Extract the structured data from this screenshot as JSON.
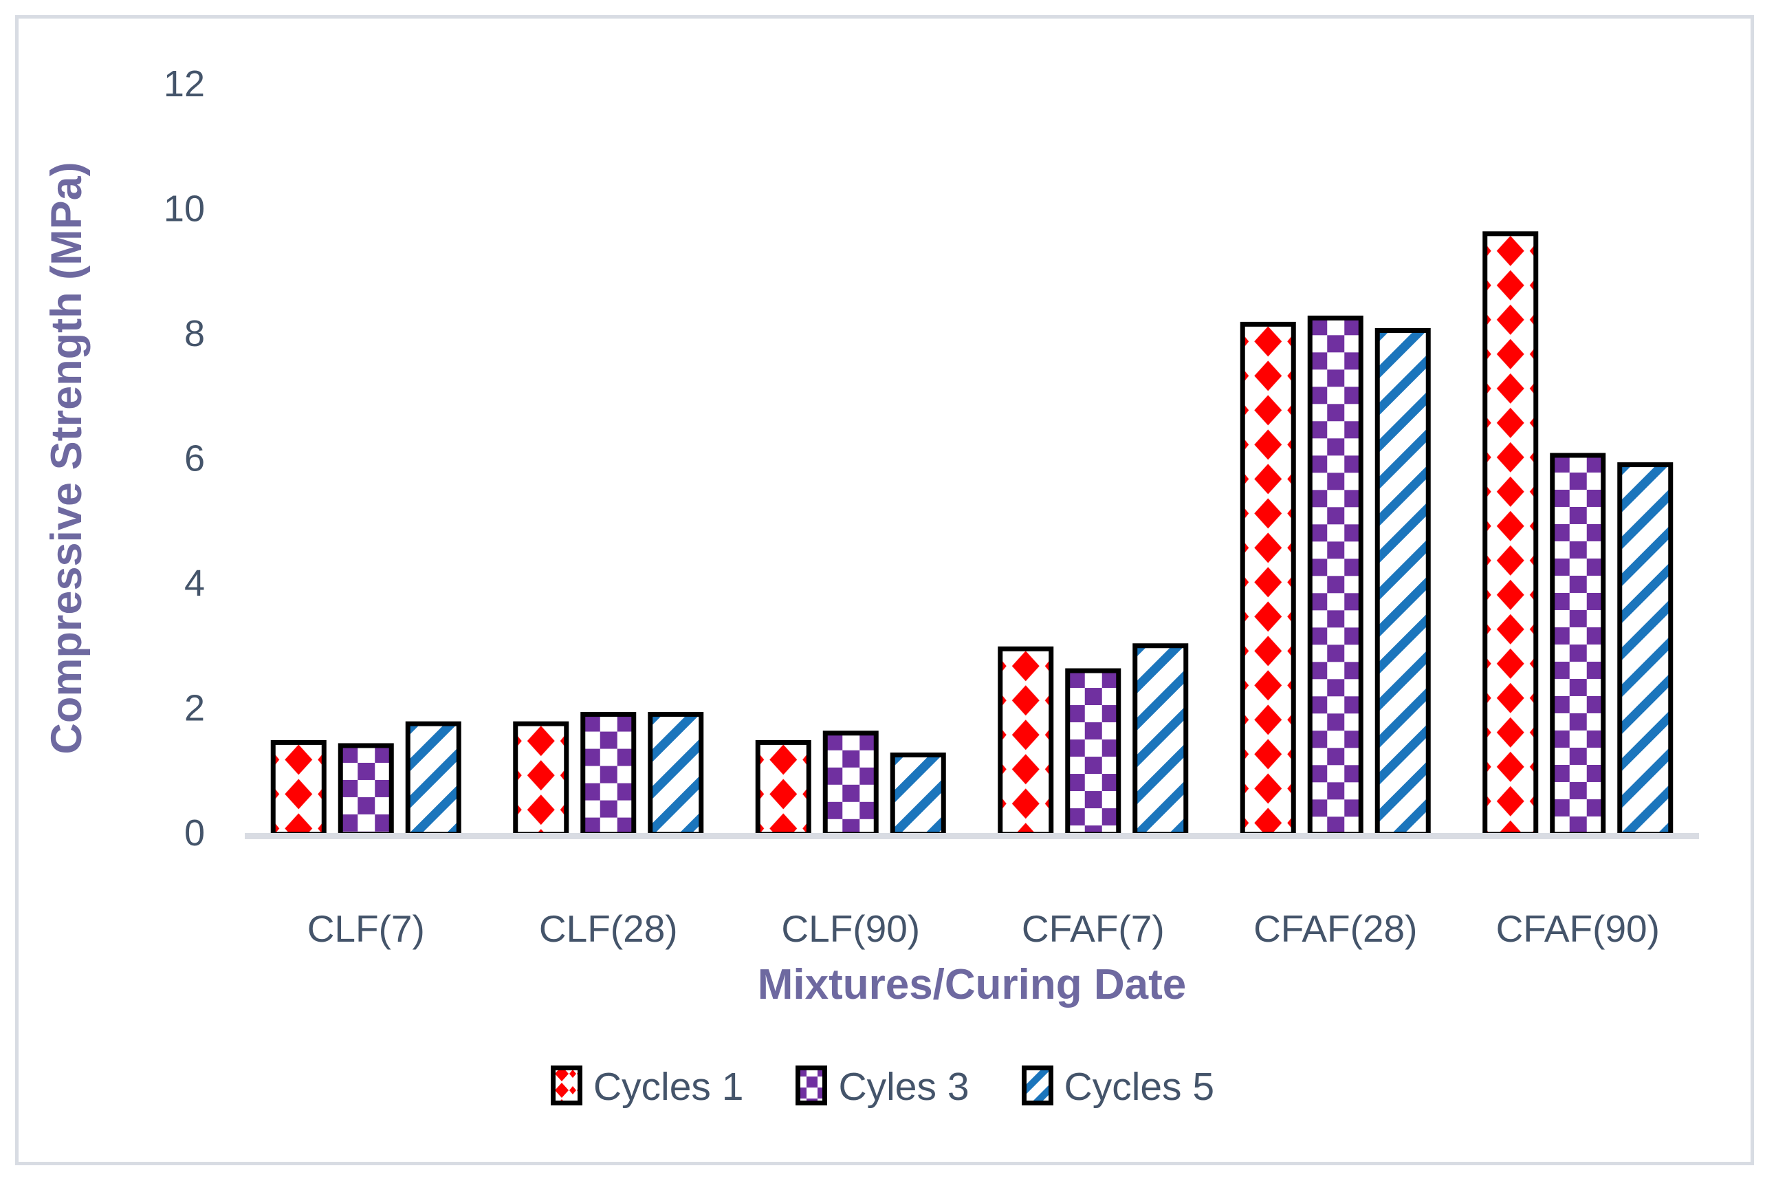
{
  "chart_data": {
    "type": "bar",
    "title": "",
    "categories": [
      "CLF(7)",
      "CLF(28)",
      "CLF(90)",
      "CFAF(7)",
      "CFAF(28)",
      "CFAF(90)"
    ],
    "series": [
      {
        "name": "Cycles 1",
        "pattern": "diamond",
        "color": "#FF0000",
        "values": [
          1.45,
          1.75,
          1.45,
          2.95,
          8.15,
          9.6
        ]
      },
      {
        "name": "Cyles 3",
        "pattern": "checkerboard",
        "color": "#7030A0",
        "values": [
          1.4,
          1.9,
          1.6,
          2.6,
          8.25,
          6.05
        ]
      },
      {
        "name": "Cycles 5",
        "pattern": "diagonal-stripe",
        "color": "#1B75BC",
        "values": [
          1.75,
          1.9,
          1.25,
          3.0,
          8.05,
          5.9
        ]
      }
    ],
    "xlabel": "Mixtures/Curing Date",
    "ylabel": "Compressive Strength (MPa)",
    "ylim": [
      0,
      12
    ],
    "yticks": [
      0,
      2,
      4,
      6,
      8,
      10,
      12
    ],
    "grid": false,
    "legend_position": "bottom"
  },
  "styles": {
    "axis_text_color": "#44546A",
    "title_color": "#6E69A0",
    "bar_border_color": "#000000",
    "bar_fill_background": "#FFFFFF",
    "baseline_color": "#D9DCE3",
    "frame_border_color": "#D8DCE3",
    "background": "#FFFFFF"
  }
}
